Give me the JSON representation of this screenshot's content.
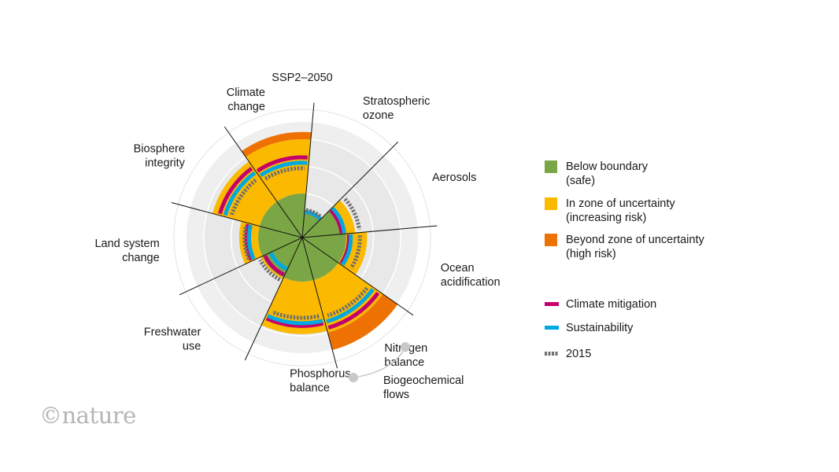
{
  "chart_data": {
    "type": "radial-bar",
    "title": "SSP2–2050",
    "sectors": [
      {
        "name": "Stratospheric ozone",
        "lines": [
          "Stratospheric",
          "ozone"
        ],
        "value": 0.18,
        "category": "safe",
        "mitigation": 0.2,
        "sustainability": 0.2,
        "y2015": 0.22
      },
      {
        "name": "Aerosols",
        "lines": [
          "Aerosols"
        ],
        "value": 0.5,
        "category": "uncertainty",
        "mitigation": 0.35,
        "sustainability": 0.38,
        "y2015": 0.55
      },
      {
        "name": "Ocean acidification",
        "lines": [
          "Ocean",
          "acidification"
        ],
        "value": 0.63,
        "category": "uncertainty",
        "mitigation": 0.43,
        "sustainability": 0.45,
        "y2015": 0.55
      },
      {
        "name": "Nitrogen balance",
        "lines": [
          "Nitrogen",
          "balance"
        ],
        "value": 1.2,
        "category": "beyond",
        "mitigation": 0.95,
        "sustainability": 0.88,
        "y2015": 0.82
      },
      {
        "name": "Phosphorus balance",
        "lines": [
          "Phosphorus",
          "balance"
        ],
        "value": 0.98,
        "category": "uncertainty",
        "mitigation": 0.89,
        "sustainability": 0.86,
        "y2015": 0.8
      },
      {
        "name": "Freshwater use",
        "lines": [
          "Freshwater",
          "use"
        ],
        "value": 0.42,
        "category": "safe",
        "mitigation": 0.37,
        "sustainability": 0.3,
        "y2015": 0.44
      },
      {
        "name": "Land system change",
        "lines": [
          "Land system",
          "change"
        ],
        "value": 0.61,
        "category": "uncertainty",
        "mitigation": 0.53,
        "sustainability": 0.5,
        "y2015": 0.55
      },
      {
        "name": "Biosphere integrity",
        "lines": [
          "Biosphere",
          "integrity"
        ],
        "value": 0.94,
        "category": "beyond",
        "mitigation": 0.86,
        "sustainability": 0.8,
        "y2015": 0.73
      },
      {
        "name": "Climate change",
        "lines": [
          "Climate",
          "change"
        ],
        "value": 1.08,
        "category": "beyond",
        "mitigation": 0.8,
        "sustainability": 0.74,
        "y2015": 0.68
      }
    ],
    "group_label": [
      "Biogeochemical",
      "flows"
    ],
    "thresholds": {
      "boundary": 0.4,
      "uncertainty_limit": 1.0
    },
    "legend": {
      "categories": [
        {
          "key": "safe",
          "lines": [
            "Below boundary",
            "(safe)"
          ],
          "color": "#7ba646"
        },
        {
          "key": "uncertainty",
          "lines": [
            "In zone of uncertainty",
            "(increasing risk)"
          ],
          "color": "#fbb900"
        },
        {
          "key": "beyond",
          "lines": [
            "Beyond zone of uncertainty",
            "(high risk)"
          ],
          "color": "#ee7203"
        }
      ],
      "series": [
        {
          "key": "mitigation",
          "label": "Climate mitigation",
          "color": "#c4006c"
        },
        {
          "key": "sustainability",
          "label": "Sustainability",
          "color": "#00a9e0"
        },
        {
          "key": "y2015",
          "label": "2015",
          "color": "#6e6e6e"
        }
      ]
    }
  },
  "logo_text": "©nature"
}
